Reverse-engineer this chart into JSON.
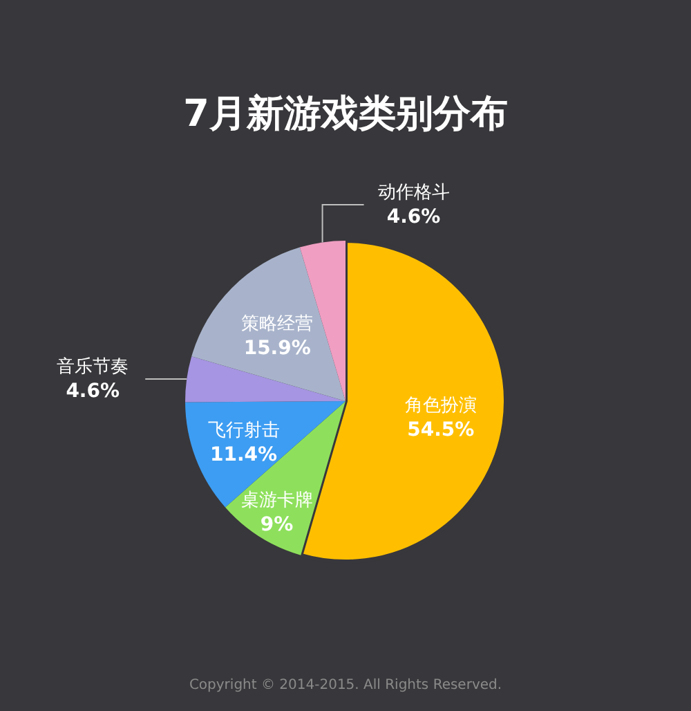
{
  "chart_data": {
    "type": "pie",
    "title": "7月新游戏类别分布",
    "categories": [
      "角色扮演",
      "桌游卡牌",
      "飞行射击",
      "音乐节奏",
      "策略经营",
      "动作格斗"
    ],
    "values": [
      54.5,
      9,
      11.4,
      4.6,
      15.9,
      4.6
    ],
    "colors": [
      "#ffbf00",
      "#8ee05c",
      "#3d9df2",
      "#a695e2",
      "#a8b3cb",
      "#f09ec2"
    ],
    "value_labels": [
      "54.5%",
      "9%",
      "11.4%",
      "4.6%",
      "15.9%",
      "4.6%"
    ],
    "annotations": [
      "Copyright © 2014-2015. All Rights Reserved."
    ]
  }
}
